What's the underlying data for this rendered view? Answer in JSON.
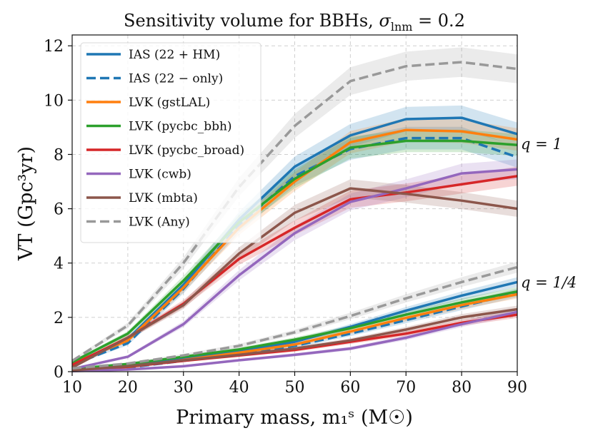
{
  "chart_data": {
    "type": "line",
    "title": "Sensitivity volume for BBHs, σ_lnm = 0.2",
    "title_parts": {
      "main": "Sensitivity volume for BBHs, ",
      "sigma": "σ",
      "subscript": "lnm",
      "value": " = 0.2"
    },
    "xlabel": "Primary mass, m₁ˢ (M☉)",
    "ylabel": "VT (Gpc³yr)",
    "xlim": [
      10,
      90
    ],
    "ylim": [
      0,
      12.4
    ],
    "xticks": [
      10,
      20,
      30,
      40,
      50,
      60,
      70,
      80,
      90
    ],
    "yticks": [
      0,
      2,
      4,
      6,
      8,
      10,
      12
    ],
    "grid": true,
    "legend_position": "top-left",
    "x": [
      10,
      20,
      30,
      40,
      50,
      60,
      70,
      80,
      90
    ],
    "groups": [
      {
        "label": "q = 1",
        "key": "q1"
      },
      {
        "label": "q = 1/4",
        "key": "q14"
      }
    ],
    "series": [
      {
        "name": "IAS (22 + HM)",
        "color": "#1f77b4",
        "dash": "solid",
        "q1": [
          0.28,
          1.2,
          3.2,
          5.6,
          7.55,
          8.7,
          9.3,
          9.35,
          8.75
        ],
        "q14": [
          0.1,
          0.25,
          0.5,
          0.75,
          1.1,
          1.65,
          2.25,
          2.8,
          3.3
        ]
      },
      {
        "name": "IAS (22 − only)",
        "color": "#1f77b4",
        "dash": "dashed",
        "q1": [
          0.25,
          1.05,
          3.05,
          5.4,
          7.2,
          8.2,
          8.6,
          8.6,
          7.9
        ],
        "q14": [
          0.05,
          0.15,
          0.4,
          0.65,
          0.95,
          1.4,
          1.9,
          2.4,
          2.9
        ]
      },
      {
        "name": "LVK (gstLAL)",
        "color": "#ff7f0e",
        "dash": "solid",
        "q1": [
          0.3,
          1.15,
          3.1,
          5.3,
          7.0,
          8.45,
          8.9,
          8.85,
          8.55
        ],
        "q14": [
          0.06,
          0.17,
          0.43,
          0.7,
          1.0,
          1.48,
          1.98,
          2.45,
          2.85
        ]
      },
      {
        "name": "LVK (pycbc_bbh)",
        "color": "#2ca02c",
        "dash": "solid",
        "q1": [
          0.35,
          1.4,
          3.35,
          5.5,
          7.1,
          8.25,
          8.5,
          8.5,
          8.35
        ],
        "q14": [
          0.1,
          0.28,
          0.55,
          0.82,
          1.18,
          1.6,
          2.1,
          2.55,
          2.95
        ]
      },
      {
        "name": "LVK (pycbc_broad)",
        "color": "#d62728",
        "dash": "solid",
        "q1": [
          0.25,
          1.25,
          2.5,
          4.15,
          5.3,
          6.35,
          6.6,
          6.9,
          7.2
        ],
        "q14": [
          0.05,
          0.18,
          0.4,
          0.6,
          0.8,
          1.1,
          1.4,
          1.8,
          2.1
        ]
      },
      {
        "name": "LVK (cwb)",
        "color": "#9467bd",
        "dash": "solid",
        "q1": [
          0.1,
          0.55,
          1.75,
          3.55,
          5.1,
          6.25,
          6.75,
          7.3,
          7.45
        ],
        "q14": [
          0.02,
          0.08,
          0.2,
          0.42,
          0.62,
          0.85,
          1.25,
          1.75,
          2.2
        ]
      },
      {
        "name": "LVK (mbta)",
        "color": "#8c564b",
        "dash": "solid",
        "q1": [
          0.15,
          1.25,
          2.45,
          4.35,
          5.85,
          6.75,
          6.55,
          6.3,
          6.0
        ],
        "q14": [
          0.05,
          0.2,
          0.42,
          0.62,
          0.85,
          1.15,
          1.55,
          2.0,
          2.3
        ]
      },
      {
        "name": "LVK (Any)",
        "color": "#999999",
        "dash": "dashed",
        "q1": [
          0.4,
          1.7,
          4.0,
          6.8,
          9.05,
          10.7,
          11.25,
          11.4,
          11.15
        ],
        "q14": [
          0.12,
          0.3,
          0.6,
          0.95,
          1.45,
          2.05,
          2.7,
          3.3,
          3.85
        ]
      }
    ]
  }
}
